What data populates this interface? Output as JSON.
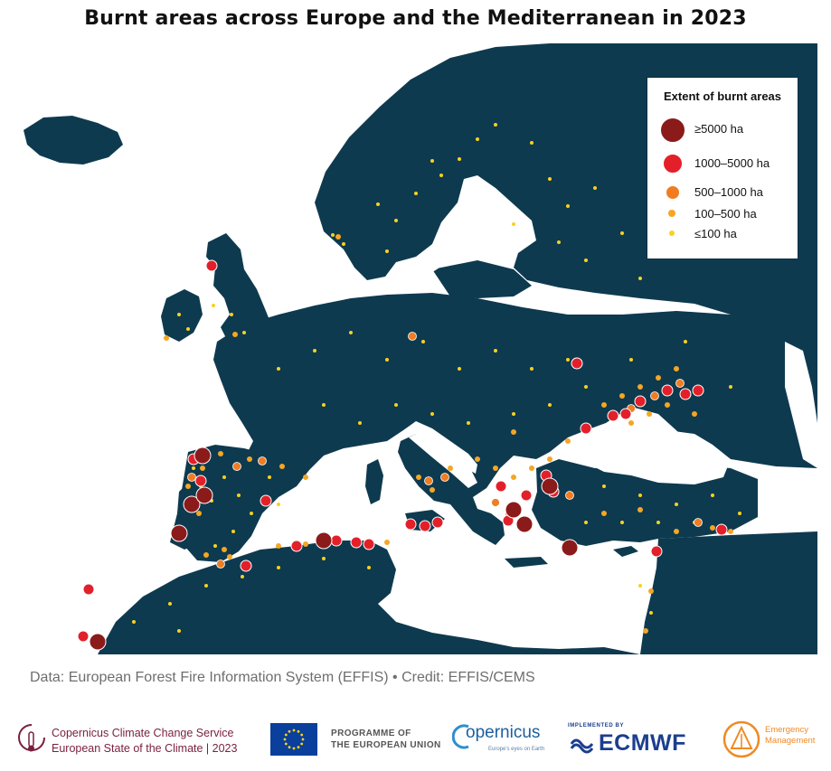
{
  "title": "Burnt areas across Europe and the Mediterranean in 2023",
  "legend": {
    "title": "Extent of burnt areas",
    "items": [
      {
        "label": "≥5000 ha",
        "color": "#8b1a1a"
      },
      {
        "label": "1000–5000 ha",
        "color": "#e3202a"
      },
      {
        "label": "500–1000 ha",
        "color": "#f07d22"
      },
      {
        "label": "100–500 ha",
        "color": "#f5a623"
      },
      {
        "label": "≤100 ha",
        "color": "#f7d21e"
      }
    ]
  },
  "source": "Data: European Forest Fire Information System (EFFIS) • Credit: EFFIS/CEMS",
  "logos": {
    "c3s_line1": "Copernicus Climate Change Service",
    "c3s_line2": "European State of the Climate | 2023",
    "eu_line1": "PROGRAMME OF",
    "eu_line2": "THE EUROPEAN UNION",
    "copernicus": "opernicus",
    "copernicus_sub": "Europe's eyes on Earth",
    "ecmwf_pre": "IMPLEMENTED BY",
    "ecmwf": "ECMWF",
    "em_line1": "Emergency",
    "em_line2": "Management"
  },
  "colors": {
    "land": "#0e3a4f",
    "water": "#ffffff"
  }
}
